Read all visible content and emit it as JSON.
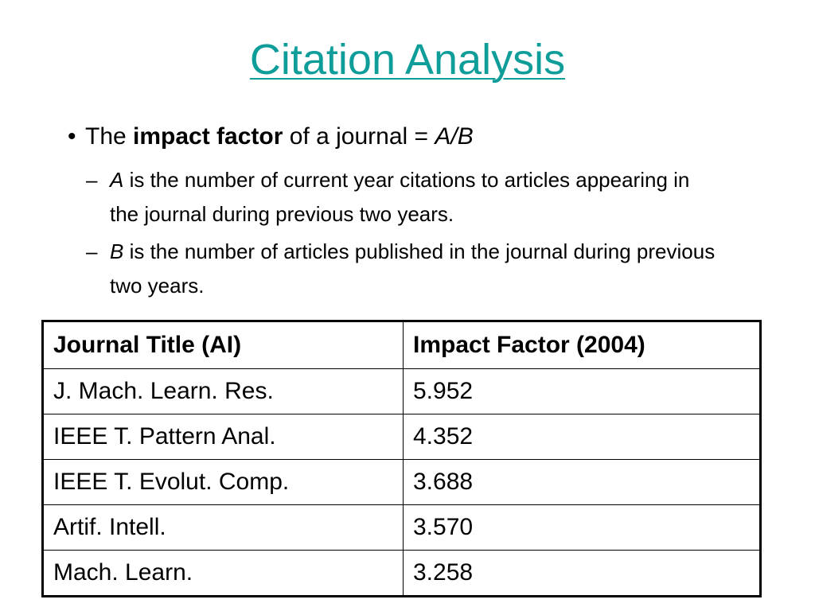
{
  "title": "Citation Analysis",
  "bullet": {
    "prefix": "The ",
    "bold": "impact factor",
    "middle": " of a journal = ",
    "formula": "A/B"
  },
  "sub_items": [
    {
      "dash": "–",
      "variable": "A",
      "text": " is the number of current year citations to articles appearing in the journal during previous two years."
    },
    {
      "dash": "–",
      "variable": "B",
      "text": " is the number of articles published in the journal during previous two years."
    }
  ],
  "table": {
    "headers": [
      "Journal Title (AI)",
      "Impact Factor (2004)"
    ],
    "rows": [
      [
        "J. Mach. Learn. Res.",
        "5.952"
      ],
      [
        "IEEE T. Pattern Anal.",
        "4.352"
      ],
      [
        "IEEE T. Evolut. Comp.",
        "3.688"
      ],
      [
        "Artif. Intell.",
        "3.570"
      ],
      [
        "Mach. Learn.",
        "3.258"
      ]
    ]
  }
}
